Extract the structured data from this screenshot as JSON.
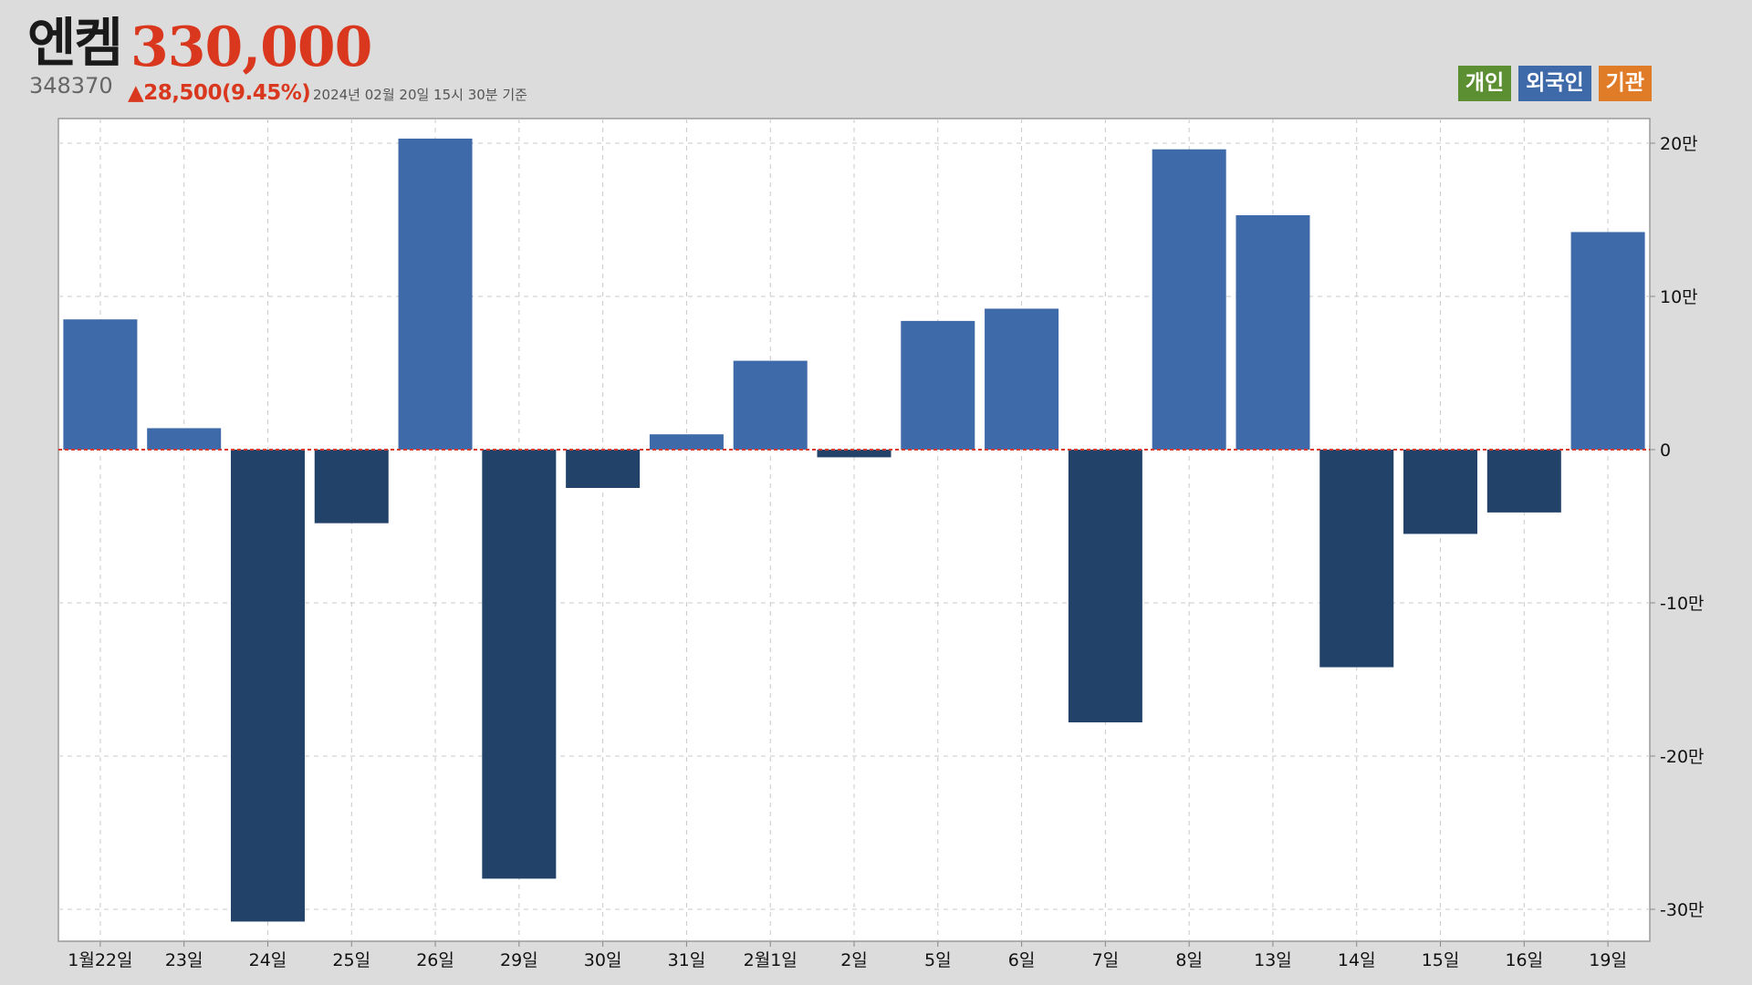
{
  "header": {
    "name": "엔켐",
    "price": "330,000",
    "code": "348370",
    "change": "▲28,500(9.45%)",
    "as_of": "2024년 02월 20일 15시 30분 기준"
  },
  "legend": [
    {
      "label": "개인",
      "color": "#5b8f32"
    },
    {
      "label": "외국인",
      "color": "#3e6aa9"
    },
    {
      "label": "기관",
      "color": "#e07c27"
    }
  ],
  "colors": {
    "positive": "#3e6aa9",
    "negative": "#22426a",
    "zero_line": "#d93a2a",
    "plot_bg": "#ffffff",
    "grid": "#c8c8c8"
  },
  "chart_data": {
    "type": "bar",
    "categories": [
      "1월22일",
      "23일",
      "24일",
      "25일",
      "26일",
      "29일",
      "30일",
      "31일",
      "2월1일",
      "2일",
      "5일",
      "6일",
      "7일",
      "8일",
      "13일",
      "14일",
      "15일",
      "16일",
      "19일"
    ],
    "series": [
      {
        "name": "외국인",
        "values": [
          85000,
          14000,
          -308000,
          -48000,
          203000,
          -280000,
          -25000,
          10000,
          58000,
          -5000,
          84000,
          92000,
          -178000,
          196000,
          153000,
          -142000,
          -55000,
          -41000,
          142000
        ]
      }
    ],
    "ylim": [
      -310000,
      215000
    ],
    "y_ticks": [
      {
        "value": 200000,
        "label": "20만"
      },
      {
        "value": 100000,
        "label": "10만"
      },
      {
        "value": 0,
        "label": "0"
      },
      {
        "value": -100000,
        "label": "-10만"
      },
      {
        "value": -200000,
        "label": "-20만"
      },
      {
        "value": -300000,
        "label": "-30만"
      }
    ],
    "grid": true,
    "y_axis_side": "right"
  }
}
